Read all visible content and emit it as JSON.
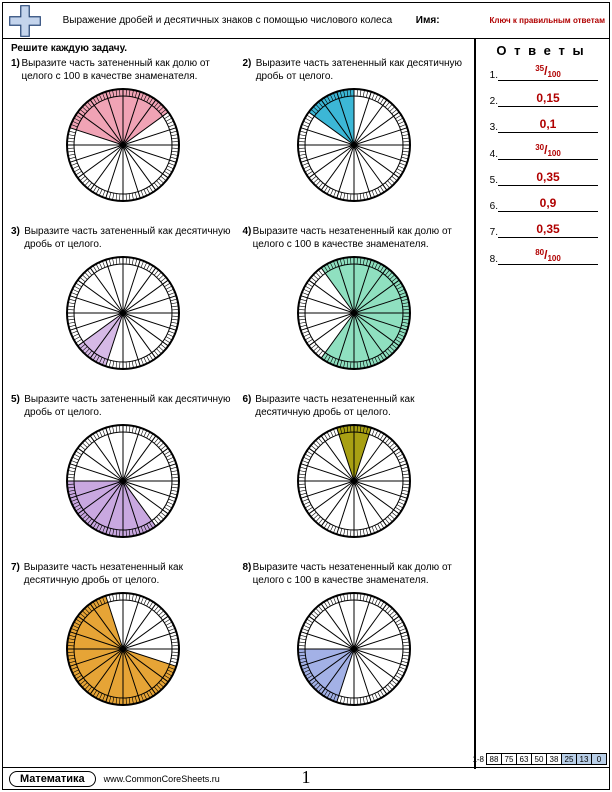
{
  "header": {
    "title": "Выражение дробей и десятичных знаков с помощью числового колеса",
    "name_label": "Имя:",
    "answer_key_note": "Ключ к правильным ответам"
  },
  "instruction": "Решите каждую задачу.",
  "answers_header": "О т в е т ы",
  "answers": [
    {
      "num": "1.",
      "type": "fraction",
      "numerator": "35",
      "denominator": "100"
    },
    {
      "num": "2.",
      "type": "plain",
      "value": "0,15"
    },
    {
      "num": "3.",
      "type": "plain",
      "value": "0,1"
    },
    {
      "num": "4.",
      "type": "fraction",
      "numerator": "30",
      "denominator": "100"
    },
    {
      "num": "5.",
      "type": "plain",
      "value": "0,35"
    },
    {
      "num": "6.",
      "type": "plain",
      "value": "0,9"
    },
    {
      "num": "7.",
      "type": "plain",
      "value": "0,35"
    },
    {
      "num": "8.",
      "type": "fraction",
      "numerator": "80",
      "denominator": "100"
    }
  ],
  "problems": [
    {
      "num": "1)",
      "text": "Выразите часть затененный как долю от целого с 100 в качестве знаменателя.",
      "shaded_count": 7,
      "start": 16,
      "color": "#f0a3b5",
      "sides": "cw"
    },
    {
      "num": "2)",
      "text": "Выразите часть затененный как десятичную дробь от целого.",
      "shaded_count": 3,
      "start": 17,
      "color": "#3cb7d6",
      "sides": "cw"
    },
    {
      "num": "3)",
      "text": "Выразите часть затененный как десятичную дробь от целого.",
      "shaded_count": 2,
      "start": 11,
      "color": "#d6b9e6",
      "sides": "cw"
    },
    {
      "num": "4)",
      "text": "Выразите часть незатененный как долю от целого с 100 в качестве знаменателя.",
      "shaded_count": 14,
      "start": 18,
      "color": "#8fe0c0",
      "sides": "cw"
    },
    {
      "num": "5)",
      "text": "Выразите часть затененный как десятичную дробь от целого.",
      "shaded_count": 7,
      "start": 8,
      "color": "#c9a8e0",
      "sides": "cw"
    },
    {
      "num": "6)",
      "text": "Выразите часть незатененный как десятичную дробь от целого.",
      "shaded_count": 2,
      "start": 19,
      "color": "#a8a013",
      "sides": "cw"
    },
    {
      "num": "7)",
      "text": "Выразите часть незатененный как десятичную дробь от целого.",
      "shaded_count": 13,
      "start": 6,
      "color": "#e6a436",
      "sides": "cw"
    },
    {
      "num": "8)",
      "text": "Выразите часть незатененный как долю от целого с 100 в качестве знаменателя.",
      "shaded_count": 4,
      "start": 11,
      "color": "#a3b1e6",
      "sides": "cw"
    }
  ],
  "wheel": {
    "radius_outer": 56,
    "radius_inner": 49,
    "major_segments": 20,
    "minor_per_major": 5,
    "stroke": "#000000",
    "background": "#ffffff"
  },
  "footer": {
    "subject": "Математика",
    "site": "www.CommonCoreSheets.ru",
    "pagenum": "1",
    "score_label": "1-8",
    "scores": [
      "88",
      "75",
      "63",
      "50",
      "38",
      "25",
      "13",
      "0"
    ],
    "shade_from_index": 5
  }
}
